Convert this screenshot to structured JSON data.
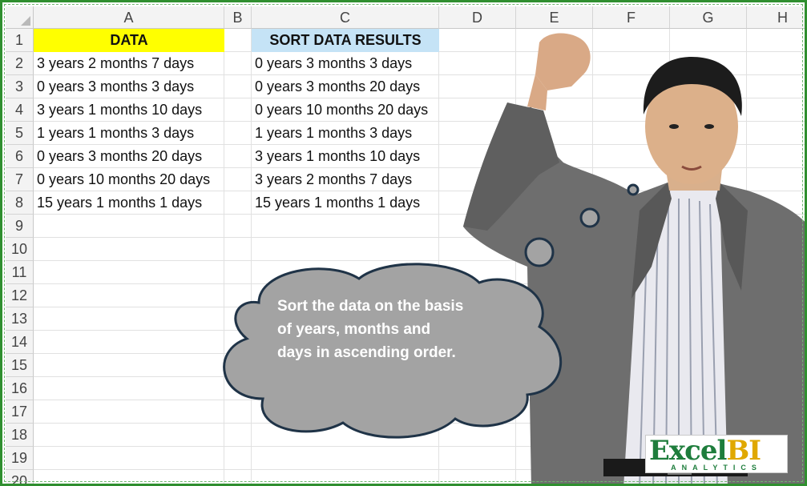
{
  "columns": [
    "A",
    "B",
    "C",
    "D",
    "E",
    "F",
    "G",
    "H"
  ],
  "rows": [
    "1",
    "2",
    "3",
    "4",
    "5",
    "6",
    "7",
    "8",
    "9",
    "10",
    "11",
    "12",
    "13",
    "14",
    "15",
    "16",
    "17",
    "18",
    "19",
    "20"
  ],
  "headers": {
    "data": "DATA",
    "results": "SORT DATA RESULTS"
  },
  "data_values": [
    "3 years 2 months 7 days",
    "0 years 3 months 3 days",
    "3 years 1 months 10 days",
    "1 years 1 months 3 days",
    "0 years 3 months 20 days",
    "0 years 10 months 20 days",
    "15 years 1 months 1 days"
  ],
  "result_values": [
    "0 years 3 months 3 days",
    "0 years 3 months 20 days",
    "0 years 10 months 20 days",
    "1 years 1 months 3 days",
    "3 years 1 months 10 days",
    "3 years 2 months 7 days",
    "15 years 1 months 1 days"
  ],
  "bubble": {
    "line1": "Sort the data on the basis",
    "line2": "of years, months and",
    "line3": "days in ascending order."
  },
  "logo": {
    "main_a": "Excel",
    "main_b": "BI",
    "sub": "ANALYTICS"
  },
  "colors": {
    "header_yellow": "#ffff00",
    "header_blue": "#c5e3f6",
    "bubble_fill": "#a3a3a3",
    "frame_green": "#2f8f2f"
  }
}
